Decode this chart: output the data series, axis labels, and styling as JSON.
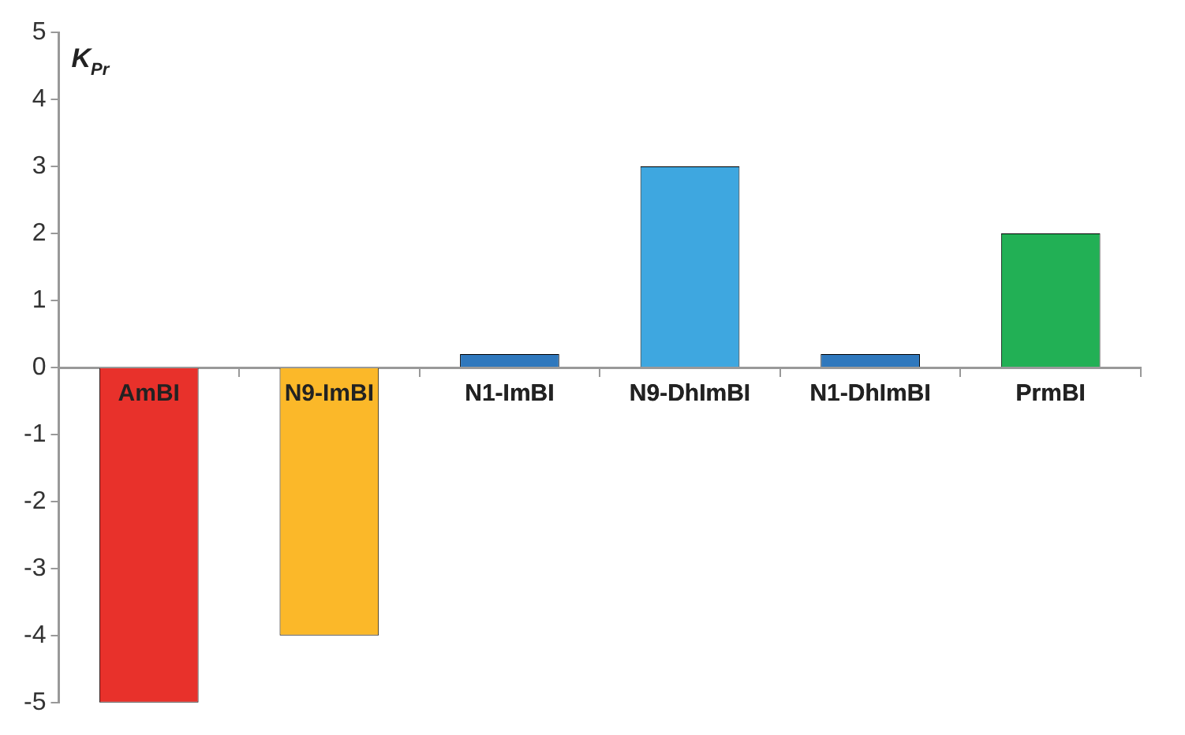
{
  "chart_data": {
    "type": "bar",
    "ylabel": "K$_{Pr}$",
    "categories": [
      "AmBI",
      "N9-ImBI",
      "N1-ImBI",
      "N9-DhImBI",
      "N1-DhImBI",
      "PrmBI"
    ],
    "values": [
      -5,
      -4,
      0.2,
      3,
      0.2,
      2
    ],
    "colors": [
      "#e8312b",
      "#fbb829",
      "#2f78bd",
      "#3ea7e0",
      "#2f78bd",
      "#22b055"
    ],
    "ylim": [
      -5,
      5
    ],
    "yticks": [
      -5,
      -4,
      -3,
      -2,
      -1,
      0,
      1,
      2,
      3,
      4,
      5
    ],
    "grid": false,
    "legend": false
  }
}
